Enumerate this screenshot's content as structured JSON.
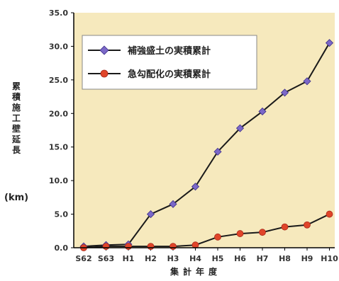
{
  "chart_data": {
    "type": "line",
    "categories": [
      "S62",
      "S63",
      "H1",
      "H2",
      "H3",
      "H4",
      "H5",
      "H6",
      "H7",
      "H8",
      "H9",
      "H10"
    ],
    "series": [
      {
        "name": "補強盛土の実積累計",
        "color": "#7b68c8",
        "marker": "diamond",
        "values": [
          0.2,
          0.4,
          0.5,
          5.0,
          6.5,
          9.1,
          14.3,
          17.8,
          20.3,
          23.1,
          24.8,
          30.5
        ]
      },
      {
        "name": "急勾配化の実積累計",
        "color": "#e0452a",
        "marker": "circle",
        "values": [
          0.0,
          0.2,
          0.2,
          0.2,
          0.2,
          0.4,
          1.6,
          2.1,
          2.3,
          3.1,
          3.4,
          5.0
        ]
      }
    ],
    "ylim": [
      0.0,
      35.0
    ],
    "yticks": [
      "0.0",
      "5.0",
      "10.0",
      "15.0",
      "20.0",
      "25.0",
      "30.0",
      "35.0"
    ],
    "ylabel": "累積施工壁延長",
    "yunit": "(km)",
    "xlabel": "集計年度",
    "legend_position": "top-left",
    "grid": false,
    "colors": {
      "plot_background": "#f6e9bd",
      "axis": "#000000",
      "line": "#1a1a1a"
    }
  }
}
